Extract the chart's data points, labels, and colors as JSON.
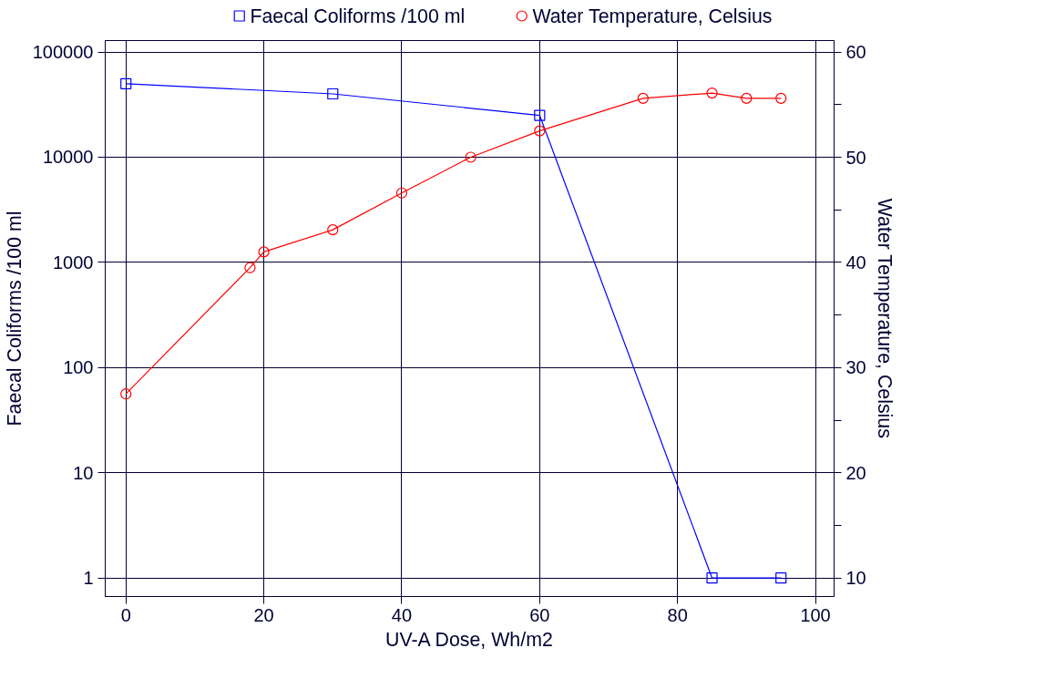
{
  "chart_data": {
    "type": "line",
    "xlabel": "UV-A Dose, Wh/m2",
    "ylabel": "Faecal Coliforms /100 ml",
    "y2label": "Water Temperature, Celsius",
    "xlim": [
      -3,
      102.7
    ],
    "xticks": [
      0,
      20,
      40,
      60,
      80,
      100
    ],
    "ylim": [
      0.667,
      128500
    ],
    "yticks": [
      1,
      10,
      100,
      1000,
      10000,
      100000
    ],
    "log": "y",
    "y2lim": [
      8.24,
      61.09
    ],
    "y2ticks": [
      10,
      {
        "value": 15,
        "label": null
      },
      20,
      {
        "value": 25,
        "label": null
      },
      30,
      {
        "value": 35,
        "label": null
      },
      40,
      {
        "value": 45,
        "label": null
      },
      50,
      {
        "value": 55,
        "label": null
      },
      60
    ],
    "grid": true,
    "legend": "top",
    "series": [
      {
        "name": "Faecal Coliforms /100 ml",
        "color": "#0000ff",
        "marker": "square",
        "x": [
          0,
          30,
          60,
          85,
          95
        ],
        "values": [
          50000,
          40000,
          25000,
          1,
          1
        ]
      },
      {
        "name": "Water Temperature, Celsius",
        "color": "#ff0000",
        "marker": "circle",
        "axis": "y2",
        "x": [
          0,
          18,
          20,
          30,
          40,
          50,
          60,
          75,
          85,
          90,
          95
        ],
        "values": [
          27.5,
          39.5,
          41,
          43.1,
          46.6,
          50,
          52.5,
          55.6,
          56.1,
          55.6,
          55.6
        ]
      }
    ]
  }
}
